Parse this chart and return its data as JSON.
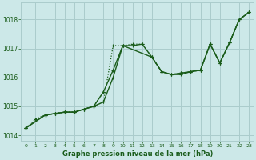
{
  "background_color": "#cce8e8",
  "grid_color": "#aacccc",
  "line_color": "#1a5c1a",
  "title": "Graphe pression niveau de la mer (hPa)",
  "xlim": [
    -0.5,
    23.5
  ],
  "ylim": [
    1013.8,
    1018.6
  ],
  "yticks": [
    1014,
    1015,
    1016,
    1017,
    1018
  ],
  "xticks": [
    0,
    1,
    2,
    3,
    4,
    5,
    6,
    7,
    8,
    9,
    10,
    11,
    12,
    13,
    14,
    15,
    16,
    17,
    18,
    19,
    20,
    21,
    22,
    23
  ],
  "series": [
    {
      "x": [
        0,
        1,
        2,
        3,
        4,
        5,
        6,
        7,
        8,
        9,
        10,
        11,
        12,
        13,
        14,
        15,
        16,
        17,
        18,
        19,
        20,
        21,
        22,
        23
      ],
      "y": [
        1014.25,
        1014.55,
        1014.7,
        1014.75,
        1014.8,
        1014.8,
        1014.9,
        1015.0,
        1015.15,
        1017.1,
        1017.1,
        1017.15,
        1017.15,
        1016.7,
        1016.2,
        1016.1,
        1016.15,
        1016.2,
        1016.25,
        1017.15,
        1016.5,
        1017.2,
        1018.0,
        1018.25
      ],
      "linestyle": "dotted",
      "marker": true,
      "linewidth": 0.9
    },
    {
      "x": [
        0,
        2,
        3,
        4,
        5,
        6,
        7,
        8,
        9,
        10,
        13,
        14,
        15,
        16,
        17,
        18,
        19,
        20,
        21,
        22,
        23
      ],
      "y": [
        1014.25,
        1014.7,
        1014.75,
        1014.8,
        1014.8,
        1014.9,
        1015.0,
        1015.5,
        1016.25,
        1017.1,
        1016.7,
        1016.2,
        1016.1,
        1016.15,
        1016.2,
        1016.25,
        1017.15,
        1016.5,
        1017.2,
        1018.0,
        1018.25
      ],
      "linestyle": "solid",
      "marker": true,
      "linewidth": 1.0
    },
    {
      "x": [
        0,
        2,
        3,
        4,
        5,
        7,
        8,
        9,
        10,
        11,
        12,
        13,
        14,
        15,
        16,
        17,
        18,
        19,
        20,
        21,
        22,
        23
      ],
      "y": [
        1014.25,
        1014.7,
        1014.75,
        1014.8,
        1014.8,
        1015.0,
        1015.15,
        1016.0,
        1017.1,
        1017.1,
        1017.15,
        1016.7,
        1016.2,
        1016.1,
        1016.1,
        1016.2,
        1016.25,
        1017.15,
        1016.5,
        1017.2,
        1018.0,
        1018.25
      ],
      "linestyle": "solid",
      "marker": true,
      "linewidth": 1.0
    },
    {
      "x": [
        0,
        1,
        2,
        3,
        4,
        5,
        6,
        7,
        8
      ],
      "y": [
        1014.25,
        1014.55,
        1014.7,
        1014.75,
        1014.8,
        1014.8,
        1014.9,
        1015.0,
        1015.5
      ],
      "linestyle": "dotted",
      "marker": true,
      "linewidth": 0.9
    }
  ]
}
